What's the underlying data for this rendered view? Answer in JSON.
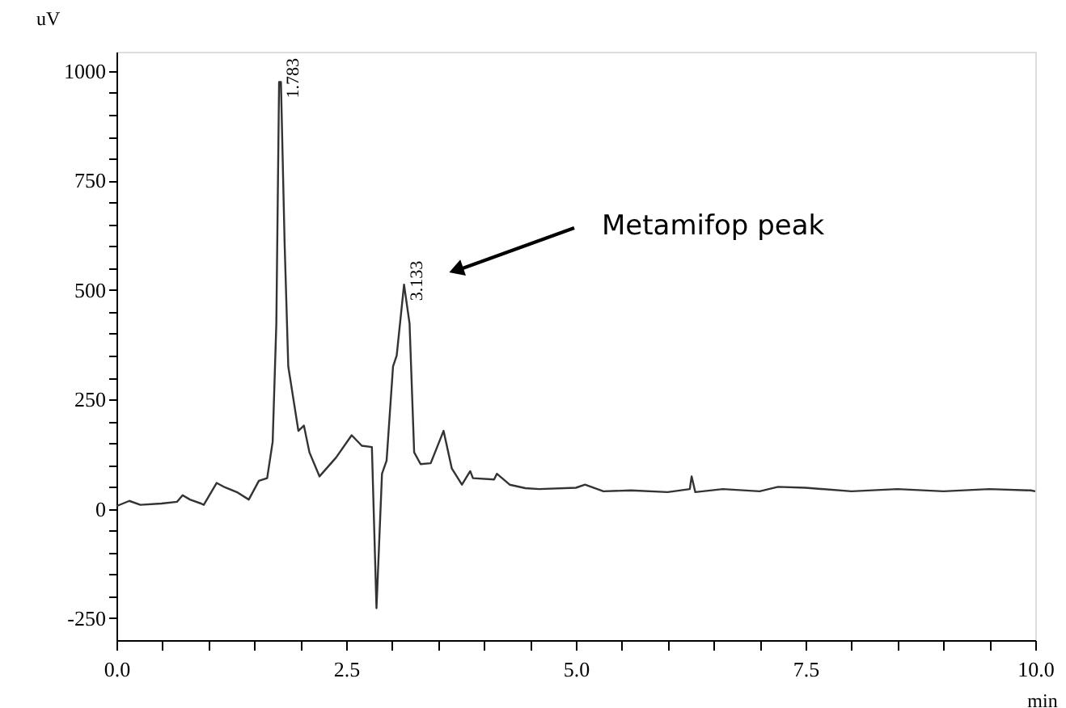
{
  "chart_data": {
    "type": "line",
    "xlabel": "min",
    "ylabel": "uV",
    "x": [
      0,
      0.14,
      0.26,
      0.49,
      0.66,
      0.72,
      0.8,
      0.92,
      0.95,
      1.09,
      1.18,
      1.32,
      1.44,
      1.55,
      1.64,
      1.7,
      1.74,
      1.77,
      1.79,
      1.83,
      1.87,
      1.98,
      2.04,
      2.1,
      2.21,
      2.39,
      2.56,
      2.67,
      2.78,
      2.83,
      2.89,
      2.94,
      3.01,
      3.05,
      3.13,
      3.19,
      3.24,
      3.31,
      3.42,
      3.56,
      3.65,
      3.76,
      3.85,
      3.88,
      4.11,
      4.14,
      4.28,
      4.45,
      4.6,
      5.0,
      5.1,
      5.3,
      5.6,
      6.0,
      6.24,
      6.26,
      6.3,
      6.6,
      7.0,
      7.2,
      7.5,
      8.0,
      8.5,
      9.0,
      9.5,
      9.95,
      10.0
    ],
    "series": [
      {
        "color": "#333333",
        "values": [
          6,
          18,
          9,
          12,
          16,
          31,
          21,
          12,
          9,
          59,
          49,
          37,
          21,
          64,
          70,
          153,
          423,
          975,
          975,
          607,
          325,
          178,
          190,
          129,
          74,
          117,
          168,
          144,
          141,
          -227,
          80,
          110,
          325,
          350,
          512,
          423,
          129,
          102,
          104,
          178,
          92,
          55,
          86,
          70,
          67,
          80,
          55,
          47,
          45,
          48,
          55,
          40,
          42,
          38,
          45,
          74,
          38,
          45,
          40,
          50,
          48,
          40,
          45,
          40,
          45,
          42,
          40
        ]
      }
    ],
    "xlim": [
      0,
      10
    ],
    "ylim": [
      -300,
      1044
    ],
    "xticks": [
      {
        "value": 0,
        "label": "0.0"
      },
      {
        "value": 0.5,
        "label": null
      },
      {
        "value": 1,
        "label": null
      },
      {
        "value": 1.5,
        "label": null
      },
      {
        "value": 2,
        "label": null
      },
      {
        "value": 2.5,
        "label": "2.5"
      },
      {
        "value": 3,
        "label": null
      },
      {
        "value": 3.5,
        "label": null
      },
      {
        "value": 4,
        "label": null
      },
      {
        "value": 4.5,
        "label": null
      },
      {
        "value": 5,
        "label": "5.0"
      },
      {
        "value": 5.5,
        "label": null
      },
      {
        "value": 6,
        "label": null
      },
      {
        "value": 6.5,
        "label": null
      },
      {
        "value": 7,
        "label": null
      },
      {
        "value": 7.5,
        "label": "7.5"
      },
      {
        "value": 8,
        "label": null
      },
      {
        "value": 8.5,
        "label": null
      },
      {
        "value": 9,
        "label": null
      },
      {
        "value": 9.5,
        "label": null
      },
      {
        "value": 10,
        "label": "10.0"
      }
    ],
    "yticks": [
      -250,
      {
        "value": -200,
        "label": null
      },
      {
        "value": -150,
        "label": null
      },
      {
        "value": -100,
        "label": null
      },
      {
        "value": -50,
        "label": null
      },
      0,
      {
        "value": 50,
        "label": null
      },
      {
        "value": 100,
        "label": null
      },
      {
        "value": 150,
        "label": null
      },
      {
        "value": 200,
        "label": null
      },
      250,
      {
        "value": 300,
        "label": null
      },
      {
        "value": 350,
        "label": null
      },
      {
        "value": 400,
        "label": null
      },
      {
        "value": 450,
        "label": null
      },
      500,
      {
        "value": 550,
        "label": null
      },
      {
        "value": 600,
        "label": null
      },
      {
        "value": 650,
        "label": null
      },
      {
        "value": 700,
        "label": null
      },
      750,
      {
        "value": 800,
        "label": null
      },
      {
        "value": 850,
        "label": null
      },
      {
        "value": 900,
        "label": null
      },
      {
        "value": 950,
        "label": null
      },
      1000
    ],
    "annotations": [
      {
        "text": "1.783",
        "x": 1.783,
        "y": 975
      },
      {
        "text": "3.133",
        "x": 3.133,
        "y": 512
      },
      "Metamifop peak"
    ],
    "grid": false,
    "marker": "none",
    "line_style": "solid"
  }
}
